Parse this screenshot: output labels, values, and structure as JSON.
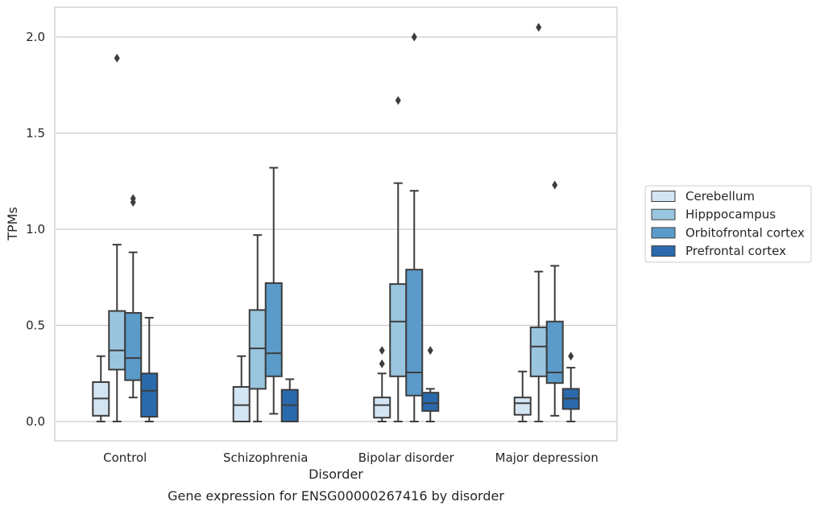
{
  "chart_data": {
    "type": "box",
    "title": "",
    "xlabel": "Disorder",
    "ylabel": "TPMs",
    "caption": "Gene expression for ENSG00000267416 by disorder",
    "ylim": [
      -0.1,
      2.15
    ],
    "yticks": [
      "0.0",
      "0.5",
      "1.0",
      "1.5",
      "2.0"
    ],
    "grid": "horizontal",
    "legend_position": "right",
    "categories": [
      "Control",
      "Schizophrenia",
      "Bipolar disorder",
      "Major depression"
    ],
    "series": [
      {
        "name": "Cerebellum",
        "color": "#d3e4f3",
        "boxes": [
          {
            "whislo": 0.0,
            "q1": 0.03,
            "med": 0.12,
            "q3": 0.205,
            "whishi": 0.34,
            "fliers": []
          },
          {
            "whislo": 0.0,
            "q1": 0.0,
            "med": 0.085,
            "q3": 0.18,
            "whishi": 0.34,
            "fliers": []
          },
          {
            "whislo": 0.0,
            "q1": 0.02,
            "med": 0.085,
            "q3": 0.125,
            "whishi": 0.25,
            "fliers": [
              0.3,
              0.37
            ]
          },
          {
            "whislo": 0.0,
            "q1": 0.035,
            "med": 0.095,
            "q3": 0.125,
            "whishi": 0.26,
            "fliers": []
          }
        ]
      },
      {
        "name": "Hipppocampus",
        "color": "#9ac5de",
        "boxes": [
          {
            "whislo": 0.0,
            "q1": 0.27,
            "med": 0.37,
            "q3": 0.575,
            "whishi": 0.92,
            "fliers": [
              1.89
            ]
          },
          {
            "whislo": 0.0,
            "q1": 0.17,
            "med": 0.38,
            "q3": 0.58,
            "whishi": 0.97,
            "fliers": []
          },
          {
            "whislo": 0.0,
            "q1": 0.235,
            "med": 0.52,
            "q3": 0.715,
            "whishi": 1.24,
            "fliers": [
              1.67
            ]
          },
          {
            "whislo": 0.0,
            "q1": 0.235,
            "med": 0.39,
            "q3": 0.49,
            "whishi": 0.78,
            "fliers": [
              2.05
            ]
          }
        ]
      },
      {
        "name": "Orbitofrontal cortex",
        "color": "#5b9bc9",
        "boxes": [
          {
            "whislo": 0.125,
            "q1": 0.215,
            "med": 0.33,
            "q3": 0.565,
            "whishi": 0.88,
            "fliers": [
              1.14,
              1.16
            ]
          },
          {
            "whislo": 0.04,
            "q1": 0.235,
            "med": 0.355,
            "q3": 0.72,
            "whishi": 1.32,
            "fliers": []
          },
          {
            "whislo": 0.0,
            "q1": 0.135,
            "med": 0.255,
            "q3": 0.79,
            "whishi": 1.2,
            "fliers": [
              2.0
            ]
          },
          {
            "whislo": 0.03,
            "q1": 0.2,
            "med": 0.255,
            "q3": 0.52,
            "whishi": 0.81,
            "fliers": [
              1.23
            ]
          }
        ]
      },
      {
        "name": "Prefrontal cortex",
        "color": "#2a6aac",
        "boxes": [
          {
            "whislo": 0.0,
            "q1": 0.025,
            "med": 0.16,
            "q3": 0.25,
            "whishi": 0.54,
            "fliers": []
          },
          {
            "whislo": 0.0,
            "q1": 0.0,
            "med": 0.085,
            "q3": 0.165,
            "whishi": 0.22,
            "fliers": []
          },
          {
            "whislo": 0.0,
            "q1": 0.055,
            "med": 0.095,
            "q3": 0.15,
            "whishi": 0.17,
            "fliers": [
              0.37
            ]
          },
          {
            "whislo": 0.0,
            "q1": 0.065,
            "med": 0.12,
            "q3": 0.17,
            "whishi": 0.28,
            "fliers": [
              0.34
            ]
          }
        ]
      }
    ]
  }
}
